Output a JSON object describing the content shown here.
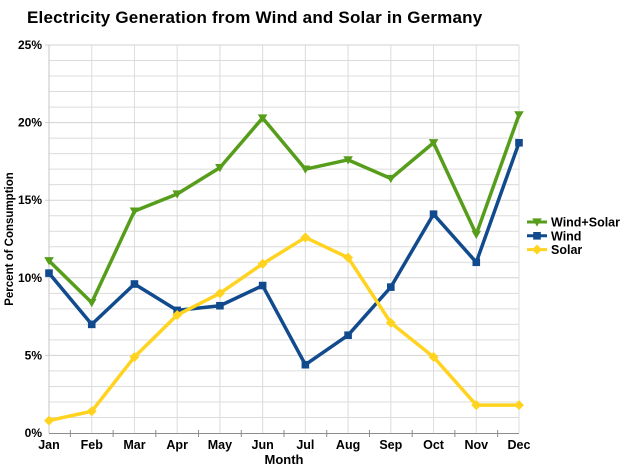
{
  "chart_data": {
    "type": "line",
    "title": "Electricity Generation from Wind and Solar in Germany",
    "xlabel": "Month",
    "ylabel": "Percent of Consumption",
    "categories": [
      "Jan",
      "Feb",
      "Mar",
      "Apr",
      "May",
      "Jun",
      "Jul",
      "Aug",
      "Sep",
      "Oct",
      "Nov",
      "Dec"
    ],
    "series": [
      {
        "name": "Wind+Solar",
        "color": "#579d1c",
        "marker": "triangle-down",
        "values": [
          11.1,
          8.4,
          14.3,
          15.4,
          17.1,
          20.3,
          17.0,
          17.6,
          16.4,
          18.7,
          12.8,
          20.5
        ]
      },
      {
        "name": "Wind",
        "color": "#114b8e",
        "marker": "square",
        "values": [
          10.3,
          7.0,
          9.6,
          7.9,
          8.2,
          9.5,
          4.4,
          6.3,
          9.4,
          14.1,
          11.0,
          18.7
        ]
      },
      {
        "name": "Solar",
        "color": "#ffd320",
        "marker": "diamond",
        "values": [
          0.8,
          1.4,
          4.9,
          7.6,
          9.0,
          10.9,
          12.6,
          11.3,
          7.1,
          4.9,
          1.8,
          1.8
        ]
      }
    ],
    "ylim": [
      0,
      25
    ],
    "ytick_major_step": 5,
    "ytick_minor_step": 1,
    "ytick_labels": [
      "0%",
      "5%",
      "10%",
      "15%",
      "20%",
      "25%"
    ],
    "grid": true,
    "legend_position": "right"
  },
  "colors": {
    "background": "#ffffff",
    "grid_minor": "#dcdcdc",
    "grid_major": "#d2d2d2",
    "x_axis": "#8c8c8c",
    "y_axis": "#c4c4c4",
    "text": "#000000"
  }
}
